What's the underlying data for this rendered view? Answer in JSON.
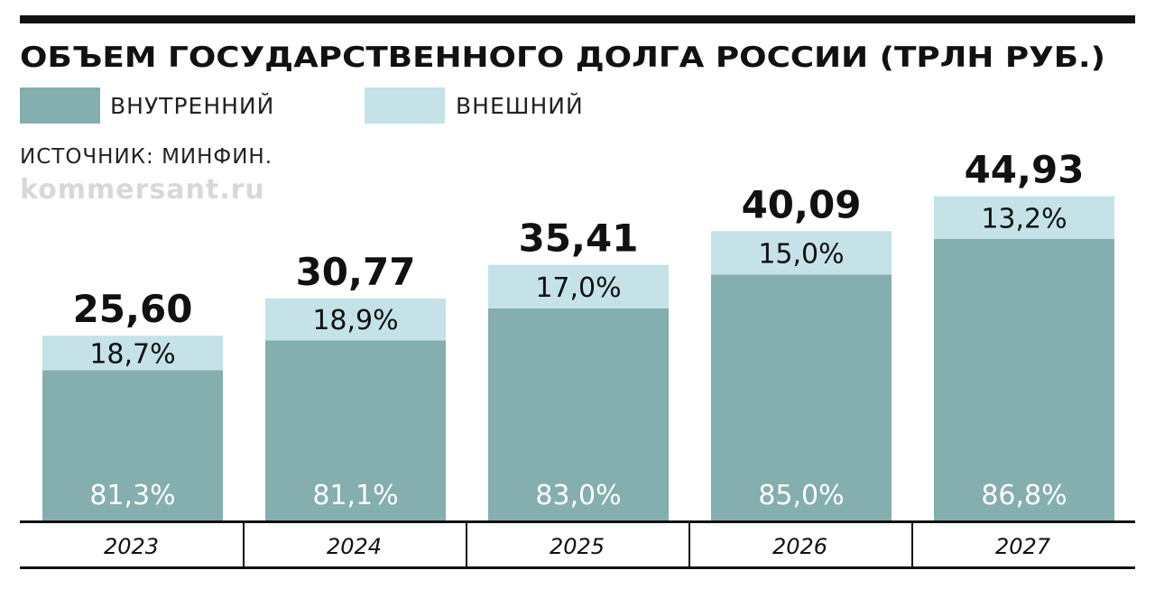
{
  "title": "ОБЪЕМ ГОСУДАРСТВЕННОГО ДОЛГА РОССИИ (ТРЛН РУБ.)",
  "legend": {
    "domestic": "ВНУТРЕННИЙ",
    "external": "ВНЕШНИЙ"
  },
  "source": "ИСТОЧНИК: МИНФИН.",
  "site": "kommersant.ru",
  "colors": {
    "domestic": "#85aeae",
    "external": "#c4e2e8",
    "rule": "#111111"
  },
  "chart_data": {
    "type": "bar",
    "stacked": true,
    "categories": [
      "2023",
      "2024",
      "2025",
      "2026",
      "2027"
    ],
    "totals": [
      25.6,
      30.77,
      35.41,
      40.09,
      44.93
    ],
    "total_labels": [
      "25,60",
      "30,77",
      "35,41",
      "40,09",
      "44,93"
    ],
    "series": [
      {
        "name": "ВНУТРЕННИЙ",
        "share_pct": [
          81.3,
          81.1,
          83.0,
          85.0,
          86.8
        ],
        "labels": [
          "81,3%",
          "81,1%",
          "83,0%",
          "85,0%",
          "86,8%"
        ]
      },
      {
        "name": "ВНЕШНИЙ",
        "share_pct": [
          18.7,
          18.9,
          17.0,
          15.0,
          13.2
        ],
        "labels": [
          "18,7%",
          "18,9%",
          "17,0%",
          "15,0%",
          "13,2%"
        ]
      }
    ],
    "ylim": [
      0,
      60
    ]
  }
}
